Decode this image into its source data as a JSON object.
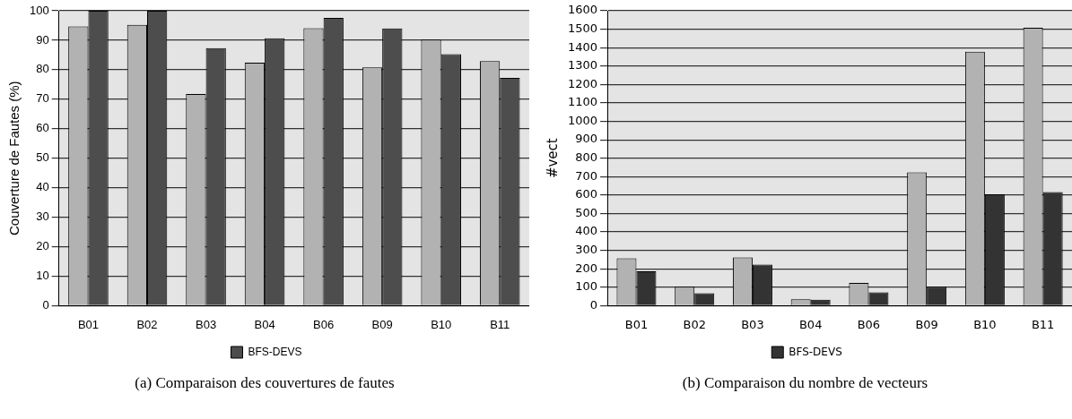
{
  "chart_data": [
    {
      "type": "bar",
      "ylabel": "Couverture de Fautes (%)",
      "categories": [
        "B01",
        "B02",
        "B03",
        "B04",
        "B06",
        "B09",
        "B10",
        "B11"
      ],
      "series": [
        {
          "color": "#b2b2b2",
          "values": [
            94.7,
            95.2,
            71.8,
            82.4,
            94.1,
            80.8,
            90.2,
            82.9
          ]
        },
        {
          "name": "BFS-DEVS",
          "color": "#4d4d4d",
          "values": [
            100,
            100,
            87.3,
            90.7,
            97.6,
            94.0,
            85.3,
            77.2
          ]
        }
      ],
      "ylim": [
        0,
        100
      ],
      "yticks": [
        0,
        10,
        20,
        30,
        40,
        50,
        60,
        70,
        80,
        90,
        100
      ],
      "grid": "y",
      "legend": "bottom",
      "annotations": [
        "(a) Comparaison des couvertures de fautes"
      ]
    },
    {
      "type": "bar",
      "ylabel": "#vect",
      "categories": [
        "B01",
        "B02",
        "B03",
        "B04",
        "B06",
        "B09",
        "B10",
        "B11"
      ],
      "series": [
        {
          "color": "#b2b2b2",
          "values": [
            257,
            103,
            262,
            35,
            123,
            723,
            1378,
            1508
          ]
        },
        {
          "name": "BFS-DEVS",
          "color": "#333333",
          "values": [
            187,
            68,
            223,
            32,
            72,
            103,
            604,
            617
          ]
        }
      ],
      "ylim": [
        0,
        1600
      ],
      "yticks": [
        0,
        100,
        200,
        300,
        400,
        500,
        600,
        700,
        800,
        900,
        1000,
        1100,
        1200,
        1300,
        1400,
        1500,
        1600
      ],
      "grid": "y",
      "legend": "bottom",
      "annotations": [
        "(b) Comparaison du nombre de vecteurs"
      ]
    }
  ]
}
